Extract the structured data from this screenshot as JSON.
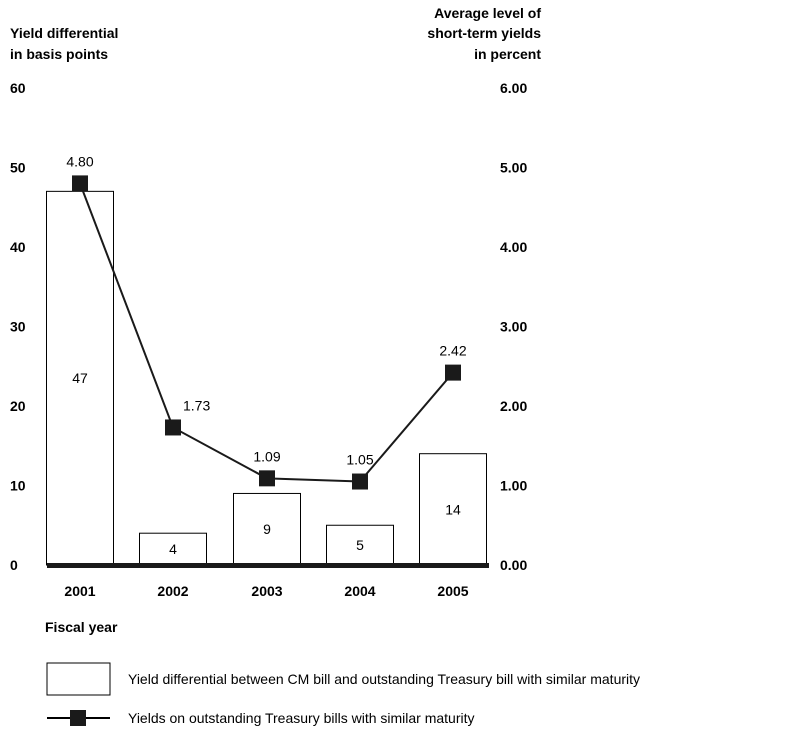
{
  "chart_data": {
    "type": "bar",
    "categories": [
      "2001",
      "2002",
      "2003",
      "2004",
      "2005"
    ],
    "series": [
      {
        "name": "Yield differential between CM bill and outstanding Treasury bill with similar maturity",
        "type": "bar",
        "axis": "left",
        "values": [
          47,
          4,
          9,
          5,
          14
        ],
        "labels": [
          "47",
          "4",
          "9",
          "5",
          "14"
        ]
      },
      {
        "name": "Yields on outstanding Treasury bills with similar maturity",
        "type": "line",
        "axis": "right",
        "values": [
          4.8,
          1.73,
          1.09,
          1.05,
          2.42
        ],
        "labels": [
          "4.80",
          "1.73",
          "1.09",
          "1.05",
          "2.42"
        ]
      }
    ],
    "ylabel_left": [
      "Yield differential",
      "in basis points"
    ],
    "ylabel_right": [
      "Average level of",
      "short-term yields",
      "in percent"
    ],
    "xlabel": "Fiscal year",
    "ylim_left": [
      0,
      60
    ],
    "ylim_right": [
      0,
      6
    ],
    "yticks_left": [
      "0",
      "10",
      "20",
      "30",
      "40",
      "50",
      "60"
    ],
    "yticks_right": [
      "0.00",
      "1.00",
      "2.00",
      "3.00",
      "4.00",
      "5.00",
      "6.00"
    ],
    "grid": false,
    "legend_position": "bottom"
  }
}
